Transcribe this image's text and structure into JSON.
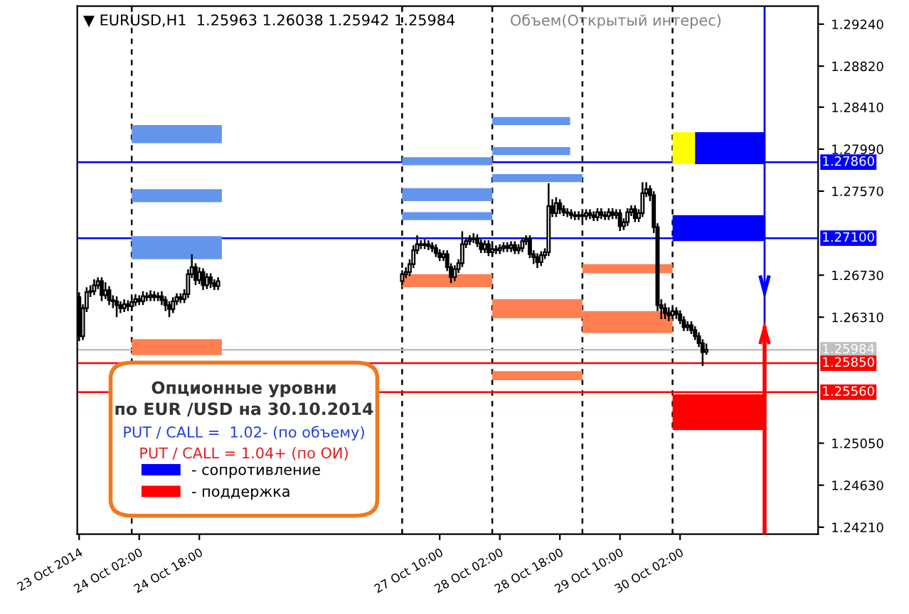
{
  "chart_data": {
    "type": "candlestick",
    "title": "▼ EURUSD,H1  1.25963 1.26038 1.25942 1.25984",
    "annotations": [
      "Объем(Открытый интерес)",
      "Опционные уровни",
      "по EUR /USD на 30.10.2014",
      "PUT / CALL =  1.02- (по объему)",
      "PUT / CALL = 1.04+ (по ОИ)"
    ],
    "x": [
      "2014-10-23T10:00",
      "2014-10-23T11:00",
      "2014-10-23T12:00",
      "2014-10-23T13:00",
      "2014-10-23T14:00",
      "2014-10-23T15:00",
      "2014-10-23T16:00",
      "2014-10-23T17:00",
      "2014-10-23T18:00",
      "2014-10-23T19:00",
      "2014-10-23T20:00",
      "2014-10-23T21:00",
      "2014-10-23T22:00",
      "2014-10-23T23:00",
      "2014-10-24T00:00",
      "2014-10-24T01:00",
      "2014-10-24T02:00",
      "2014-10-24T03:00",
      "2014-10-24T04:00",
      "2014-10-24T05:00",
      "2014-10-24T06:00",
      "2014-10-24T07:00",
      "2014-10-24T08:00",
      "2014-10-24T09:00",
      "2014-10-24T10:00",
      "2014-10-24T11:00",
      "2014-10-24T12:00",
      "2014-10-24T13:00",
      "2014-10-24T14:00",
      "2014-10-24T15:00",
      "2014-10-24T16:00",
      "2014-10-24T17:00",
      "2014-10-24T18:00",
      "2014-10-24T19:00",
      "2014-10-24T20:00",
      "2014-10-24T21:00",
      "2014-10-24T22:00",
      "2014-10-24T23:00",
      "2014-10-27T00:00",
      "2014-10-27T01:00",
      "2014-10-27T02:00",
      "2014-10-27T03:00",
      "2014-10-27T04:00",
      "2014-10-27T05:00",
      "2014-10-27T06:00",
      "2014-10-27T07:00",
      "2014-10-27T08:00",
      "2014-10-27T09:00",
      "2014-10-27T10:00",
      "2014-10-27T11:00",
      "2014-10-27T12:00",
      "2014-10-27T13:00",
      "2014-10-27T14:00",
      "2014-10-27T15:00",
      "2014-10-27T16:00",
      "2014-10-27T17:00",
      "2014-10-27T18:00",
      "2014-10-27T19:00",
      "2014-10-27T20:00",
      "2014-10-27T21:00",
      "2014-10-27T22:00",
      "2014-10-27T23:00",
      "2014-10-28T00:00",
      "2014-10-28T01:00",
      "2014-10-28T02:00",
      "2014-10-28T03:00",
      "2014-10-28T04:00",
      "2014-10-28T05:00",
      "2014-10-28T06:00",
      "2014-10-28T07:00",
      "2014-10-28T08:00",
      "2014-10-28T09:00",
      "2014-10-28T10:00",
      "2014-10-28T11:00",
      "2014-10-28T12:00",
      "2014-10-28T13:00",
      "2014-10-28T14:00",
      "2014-10-28T15:00",
      "2014-10-28T16:00",
      "2014-10-28T17:00",
      "2014-10-28T18:00",
      "2014-10-28T19:00",
      "2014-10-28T20:00",
      "2014-10-28T21:00",
      "2014-10-28T22:00",
      "2014-10-28T23:00",
      "2014-10-29T00:00",
      "2014-10-29T01:00",
      "2014-10-29T02:00",
      "2014-10-29T03:00",
      "2014-10-29T04:00",
      "2014-10-29T05:00",
      "2014-10-29T06:00",
      "2014-10-29T07:00",
      "2014-10-29T08:00",
      "2014-10-29T09:00",
      "2014-10-29T10:00",
      "2014-10-29T11:00",
      "2014-10-29T12:00",
      "2014-10-29T13:00",
      "2014-10-29T14:00",
      "2014-10-29T15:00",
      "2014-10-29T16:00",
      "2014-10-29T17:00",
      "2014-10-29T18:00",
      "2014-10-29T19:00",
      "2014-10-29T20:00",
      "2014-10-29T21:00",
      "2014-10-29T22:00",
      "2014-10-29T23:00",
      "2014-10-30T00:00",
      "2014-10-30T01:00",
      "2014-10-30T02:00",
      "2014-10-30T03:00",
      "2014-10-30T04:00",
      "2014-10-30T05:00",
      "2014-10-30T06:00",
      "2014-10-30T07:00",
      "2014-10-30T08:00",
      "2014-10-30T09:00"
    ],
    "ohlc": [
      [
        1.2651,
        1.2655,
        1.2608,
        1.2612
      ],
      [
        1.2612,
        1.2643,
        1.2609,
        1.264
      ],
      [
        1.264,
        1.266,
        1.2637,
        1.2656
      ],
      [
        1.2656,
        1.2662,
        1.2652,
        1.2657
      ],
      [
        1.2657,
        1.2668,
        1.2654,
        1.2663
      ],
      [
        1.2663,
        1.267,
        1.266,
        1.2667
      ],
      [
        1.2667,
        1.267,
        1.2648,
        1.2653
      ],
      [
        1.2653,
        1.2665,
        1.265,
        1.2658
      ],
      [
        1.2658,
        1.2661,
        1.2644,
        1.2648
      ],
      [
        1.2648,
        1.2652,
        1.2641,
        1.2647
      ],
      [
        1.2647,
        1.2651,
        1.2632,
        1.2643
      ],
      [
        1.2643,
        1.2646,
        1.2636,
        1.264
      ],
      [
        1.264,
        1.2648,
        1.2637,
        1.2644
      ],
      [
        1.2644,
        1.2647,
        1.2638,
        1.2642
      ],
      [
        1.2642,
        1.265,
        1.2638,
        1.2646
      ],
      [
        1.2646,
        1.2653,
        1.2643,
        1.2649
      ],
      [
        1.2649,
        1.2652,
        1.2644,
        1.2647
      ],
      [
        1.2647,
        1.2656,
        1.2644,
        1.2652
      ],
      [
        1.2652,
        1.2655,
        1.2648,
        1.2651
      ],
      [
        1.2651,
        1.2657,
        1.2648,
        1.2653
      ],
      [
        1.2653,
        1.2656,
        1.2648,
        1.2651
      ],
      [
        1.2651,
        1.2655,
        1.2648,
        1.2652
      ],
      [
        1.2652,
        1.2656,
        1.2644,
        1.2648
      ],
      [
        1.2648,
        1.2651,
        1.2638,
        1.2643
      ],
      [
        1.2643,
        1.2646,
        1.2632,
        1.2639
      ],
      [
        1.2639,
        1.265,
        1.2636,
        1.2647
      ],
      [
        1.2647,
        1.2654,
        1.2644,
        1.2651
      ],
      [
        1.2651,
        1.2654,
        1.2646,
        1.2649
      ],
      [
        1.2649,
        1.2658,
        1.2646,
        1.2654
      ],
      [
        1.2654,
        1.2678,
        1.2651,
        1.2674
      ],
      [
        1.2674,
        1.2693,
        1.2671,
        1.2681
      ],
      [
        1.2681,
        1.2684,
        1.2664,
        1.2668
      ],
      [
        1.2668,
        1.268,
        1.2665,
        1.2676
      ],
      [
        1.2676,
        1.2679,
        1.2659,
        1.2663
      ],
      [
        1.2663,
        1.2674,
        1.266,
        1.2671
      ],
      [
        1.2671,
        1.2674,
        1.2661,
        1.2665
      ],
      [
        1.2665,
        1.2668,
        1.2659,
        1.2662
      ],
      [
        1.2662,
        1.267,
        1.2659,
        1.2667
      ],
      [
        1.2667,
        1.2677,
        1.2664,
        1.2674
      ],
      [
        1.2674,
        1.268,
        1.2671,
        1.2676
      ],
      [
        1.2676,
        1.2688,
        1.2673,
        1.2684
      ],
      [
        1.2684,
        1.2702,
        1.2681,
        1.2698
      ],
      [
        1.2698,
        1.2712,
        1.2695,
        1.2704
      ],
      [
        1.2704,
        1.2707,
        1.27,
        1.2703
      ],
      [
        1.2703,
        1.2708,
        1.27,
        1.2704
      ],
      [
        1.2704,
        1.2707,
        1.2699,
        1.2702
      ],
      [
        1.2702,
        1.2705,
        1.2697,
        1.27
      ],
      [
        1.27,
        1.2703,
        1.2692,
        1.2695
      ],
      [
        1.2695,
        1.2698,
        1.2688,
        1.2691
      ],
      [
        1.2691,
        1.2697,
        1.2688,
        1.2694
      ],
      [
        1.2694,
        1.2697,
        1.2678,
        1.2681
      ],
      [
        1.2681,
        1.2684,
        1.2666,
        1.2671
      ],
      [
        1.2671,
        1.2682,
        1.2668,
        1.2679
      ],
      [
        1.2679,
        1.2688,
        1.2676,
        1.2685
      ],
      [
        1.2685,
        1.2716,
        1.2682,
        1.2704
      ],
      [
        1.2704,
        1.271,
        1.2701,
        1.2707
      ],
      [
        1.2707,
        1.2712,
        1.2704,
        1.2709
      ],
      [
        1.2709,
        1.2714,
        1.2706,
        1.271
      ],
      [
        1.271,
        1.2713,
        1.2702,
        1.2705
      ],
      [
        1.2705,
        1.2708,
        1.2696,
        1.2699
      ],
      [
        1.2699,
        1.2707,
        1.2696,
        1.2704
      ],
      [
        1.2704,
        1.2707,
        1.2693,
        1.2696
      ],
      [
        1.2696,
        1.2702,
        1.2693,
        1.2699
      ],
      [
        1.2699,
        1.2702,
        1.2695,
        1.2698
      ],
      [
        1.2698,
        1.2703,
        1.2695,
        1.27
      ],
      [
        1.27,
        1.2705,
        1.2697,
        1.2702
      ],
      [
        1.2702,
        1.2705,
        1.2697,
        1.27
      ],
      [
        1.27,
        1.2706,
        1.2697,
        1.2703
      ],
      [
        1.2703,
        1.2706,
        1.2695,
        1.2698
      ],
      [
        1.2698,
        1.2703,
        1.2695,
        1.27
      ],
      [
        1.27,
        1.271,
        1.2697,
        1.2707
      ],
      [
        1.2707,
        1.2712,
        1.2704,
        1.2709
      ],
      [
        1.2709,
        1.2712,
        1.2691,
        1.2694
      ],
      [
        1.2694,
        1.2697,
        1.2685,
        1.2691
      ],
      [
        1.2691,
        1.2694,
        1.2681,
        1.2686
      ],
      [
        1.2686,
        1.2696,
        1.2683,
        1.2693
      ],
      [
        1.2693,
        1.2699,
        1.269,
        1.2696
      ],
      [
        1.2696,
        1.2764,
        1.2693,
        1.2742
      ],
      [
        1.2742,
        1.2748,
        1.2732,
        1.2735
      ],
      [
        1.2735,
        1.275,
        1.2732,
        1.2745
      ],
      [
        1.2745,
        1.2748,
        1.2735,
        1.2739
      ],
      [
        1.2739,
        1.2742,
        1.2733,
        1.2736
      ],
      [
        1.2736,
        1.2739,
        1.2732,
        1.2735
      ],
      [
        1.2735,
        1.2738,
        1.273,
        1.2733
      ],
      [
        1.2733,
        1.2736,
        1.2729,
        1.2732
      ],
      [
        1.2732,
        1.2736,
        1.2729,
        1.2733
      ],
      [
        1.2733,
        1.2736,
        1.2729,
        1.2732
      ],
      [
        1.2732,
        1.2738,
        1.2729,
        1.2735
      ],
      [
        1.2735,
        1.2738,
        1.273,
        1.2733
      ],
      [
        1.2733,
        1.2736,
        1.2728,
        1.2731
      ],
      [
        1.2731,
        1.2739,
        1.2728,
        1.2736
      ],
      [
        1.2736,
        1.2739,
        1.273,
        1.2733
      ],
      [
        1.2733,
        1.2736,
        1.2729,
        1.2732
      ],
      [
        1.2732,
        1.2739,
        1.2729,
        1.2736
      ],
      [
        1.2736,
        1.2739,
        1.273,
        1.2733
      ],
      [
        1.2733,
        1.2738,
        1.273,
        1.2735
      ],
      [
        1.2735,
        1.2738,
        1.2718,
        1.2722
      ],
      [
        1.2722,
        1.2729,
        1.2719,
        1.2726
      ],
      [
        1.2726,
        1.2739,
        1.2723,
        1.2736
      ],
      [
        1.2736,
        1.2742,
        1.2733,
        1.2739
      ],
      [
        1.2739,
        1.2742,
        1.2727,
        1.273
      ],
      [
        1.273,
        1.2738,
        1.2727,
        1.2735
      ],
      [
        1.2735,
        1.2765,
        1.2732,
        1.2755
      ],
      [
        1.2755,
        1.2765,
        1.2752,
        1.2759
      ],
      [
        1.2759,
        1.2762,
        1.2748,
        1.2753
      ],
      [
        1.2753,
        1.2756,
        1.2716,
        1.2721
      ],
      [
        1.2721,
        1.2724,
        1.2638,
        1.2643
      ],
      [
        1.2643,
        1.2648,
        1.263,
        1.264
      ],
      [
        1.264,
        1.2644,
        1.263,
        1.2635
      ],
      [
        1.2635,
        1.264,
        1.2628,
        1.2633
      ],
      [
        1.2633,
        1.264,
        1.263,
        1.2637
      ],
      [
        1.2637,
        1.264,
        1.263,
        1.2634
      ],
      [
        1.2634,
        1.2637,
        1.2625,
        1.2628
      ],
      [
        1.2628,
        1.2631,
        1.2618,
        1.2621
      ],
      [
        1.2621,
        1.2626,
        1.2618,
        1.2623
      ],
      [
        1.2623,
        1.2626,
        1.2615,
        1.2618
      ],
      [
        1.2618,
        1.2621,
        1.2609,
        1.2612
      ],
      [
        1.2612,
        1.2615,
        1.2602,
        1.2605
      ],
      [
        1.2605,
        1.2608,
        1.2583,
        1.2596
      ],
      [
        1.25963,
        1.26038,
        1.25942,
        1.25984
      ]
    ],
    "series": [
      {
        "type": "bar",
        "color": "#6495ed",
        "x": [
          "2014-10-24T12:00",
          "2014-10-27T12:00",
          "2014-10-28T10:22"
        ],
        "base": [
          1.2805,
          1.2783,
          1.2823
        ],
        "values": [
          0.0018,
          0.0008,
          0.0008
        ]
      },
      {
        "type": "bar",
        "color": "#6495ed",
        "x": [
          "2014-10-24T12:00",
          "2014-10-27T12:00",
          "2014-10-28T10:22"
        ],
        "base": [
          1.2746,
          1.2747,
          1.2793
        ],
        "values": [
          0.0013,
          0.0013,
          0.0008
        ]
      },
      {
        "type": "bar",
        "color": "#6495ed",
        "x": [
          "2014-10-24T12:00",
          "2014-10-27T12:00",
          "2014-10-28T12:00"
        ],
        "base": [
          1.2689,
          1.2728,
          1.2766
        ],
        "values": [
          0.0023,
          0.0008,
          0.0008
        ]
      },
      {
        "type": "bar",
        "color": "#ff7f50",
        "x": [
          "2014-10-24T12:00",
          "2014-10-27T12:00",
          "2014-10-28T12:00",
          "2014-10-29T12:00"
        ],
        "base": [
          1.2593,
          1.2661,
          1.263,
          1.2675
        ],
        "values": [
          0.0016,
          0.0013,
          0.0019,
          0.0009
        ]
      },
      {
        "type": "bar",
        "color": "#ff7f50",
        "x": [
          "2014-10-28T12:00",
          "2014-10-29T12:00"
        ],
        "base": [
          1.2568,
          1.2615
        ],
        "values": [
          0.0009,
          0.0022
        ]
      },
      {
        "type": "bar",
        "color": "#ffff00",
        "x": [
          "2014-10-30T03:00"
        ],
        "base": [
          1.2784
        ],
        "values": [
          0.0032
        ]
      },
      {
        "type": "bar",
        "name": "- сопротивление",
        "color": "#0000ff",
        "x": [
          "2014-10-30T12:15",
          "2014-10-30T15:15"
        ],
        "base": [
          1.2707,
          1.2784
        ],
        "values": [
          0.0026,
          0.0032
        ]
      },
      {
        "type": "bar",
        "name": "- поддержка",
        "color": "#ff0000",
        "x": [
          "2014-10-30T12:15"
        ],
        "base": [
          1.2518
        ],
        "values": [
          0.0036
        ]
      }
    ],
    "ref_lines": [
      {
        "axis": "x",
        "value": "2014-10-24T00:00",
        "color": "#000000",
        "line_style": "dashed"
      },
      {
        "axis": "x",
        "value": "2014-10-27T00:00",
        "color": "#000000",
        "line_style": "dashed"
      },
      {
        "axis": "x",
        "value": "2014-10-28T00:00",
        "color": "#000000",
        "line_style": "dashed"
      },
      {
        "axis": "x",
        "value": "2014-10-29T00:00",
        "color": "#000000",
        "line_style": "dashed"
      },
      {
        "axis": "x",
        "value": "2014-10-30T00:00",
        "color": "#000000",
        "line_style": "dashed"
      },
      {
        "axis": "x",
        "value": "2014-10-31T00:30",
        "color": "#0000ff",
        "line_style": "solid"
      },
      {
        "axis": "y",
        "value": 1.2786,
        "label": "1.27860",
        "color": "#0000ff",
        "line_style": "solid"
      },
      {
        "axis": "y",
        "value": 1.271,
        "label": "1.27100",
        "color": "#0000ff",
        "line_style": "solid"
      },
      {
        "axis": "y",
        "value": 1.25984,
        "label": "1.25984",
        "color": "#c0c0c0",
        "line_style": "solid"
      },
      {
        "axis": "y",
        "value": 1.2585,
        "label": "1.25850",
        "color": "#ff0000",
        "line_style": "solid"
      },
      {
        "axis": "y",
        "value": 1.2556,
        "label": "1.25560",
        "color": "#ff0000",
        "line_style": "solid"
      }
    ],
    "xlim": [
      "2014-10-23T09:30",
      "2014-10-31T14:45"
    ],
    "xticks": [
      {
        "value": "2014-10-23T10:00",
        "label": "23 Oct 2014"
      },
      {
        "value": "2014-10-24T02:00",
        "label": "24 Oct 02:00"
      },
      {
        "value": "2014-10-24T18:00",
        "label": "24 Oct 18:00"
      },
      {
        "value": "2014-10-27T10:00",
        "label": "27 Oct 10:00"
      },
      {
        "value": "2014-10-28T02:00",
        "label": "28 Oct 02:00"
      },
      {
        "value": "2014-10-28T18:00",
        "label": "28 Oct 18:00"
      },
      {
        "value": "2014-10-29T10:00",
        "label": "29 Oct 10:00"
      },
      {
        "value": "2014-10-30T02:00",
        "label": "30 Oct 02:00"
      }
    ],
    "ylim": [
      1.2414,
      1.2942
    ],
    "yticks": [
      {
        "value": 1.2924,
        "label": "1.29240"
      },
      {
        "value": 1.2882,
        "label": "1.28820"
      },
      {
        "value": 1.2841,
        "label": "1.28410"
      },
      {
        "value": 1.2799,
        "label": "1.27990"
      },
      {
        "value": 1.2757,
        "label": "1.27570"
      },
      {
        "value": 1.2673,
        "label": "1.26730"
      },
      {
        "value": 1.2631,
        "label": "1.26310"
      },
      {
        "value": 1.2505,
        "label": "1.25050"
      },
      {
        "value": 1.2463,
        "label": "1.24630"
      },
      {
        "value": 1.2421,
        "label": "1.24210"
      }
    ],
    "grid": false,
    "legend": "bottom left"
  }
}
